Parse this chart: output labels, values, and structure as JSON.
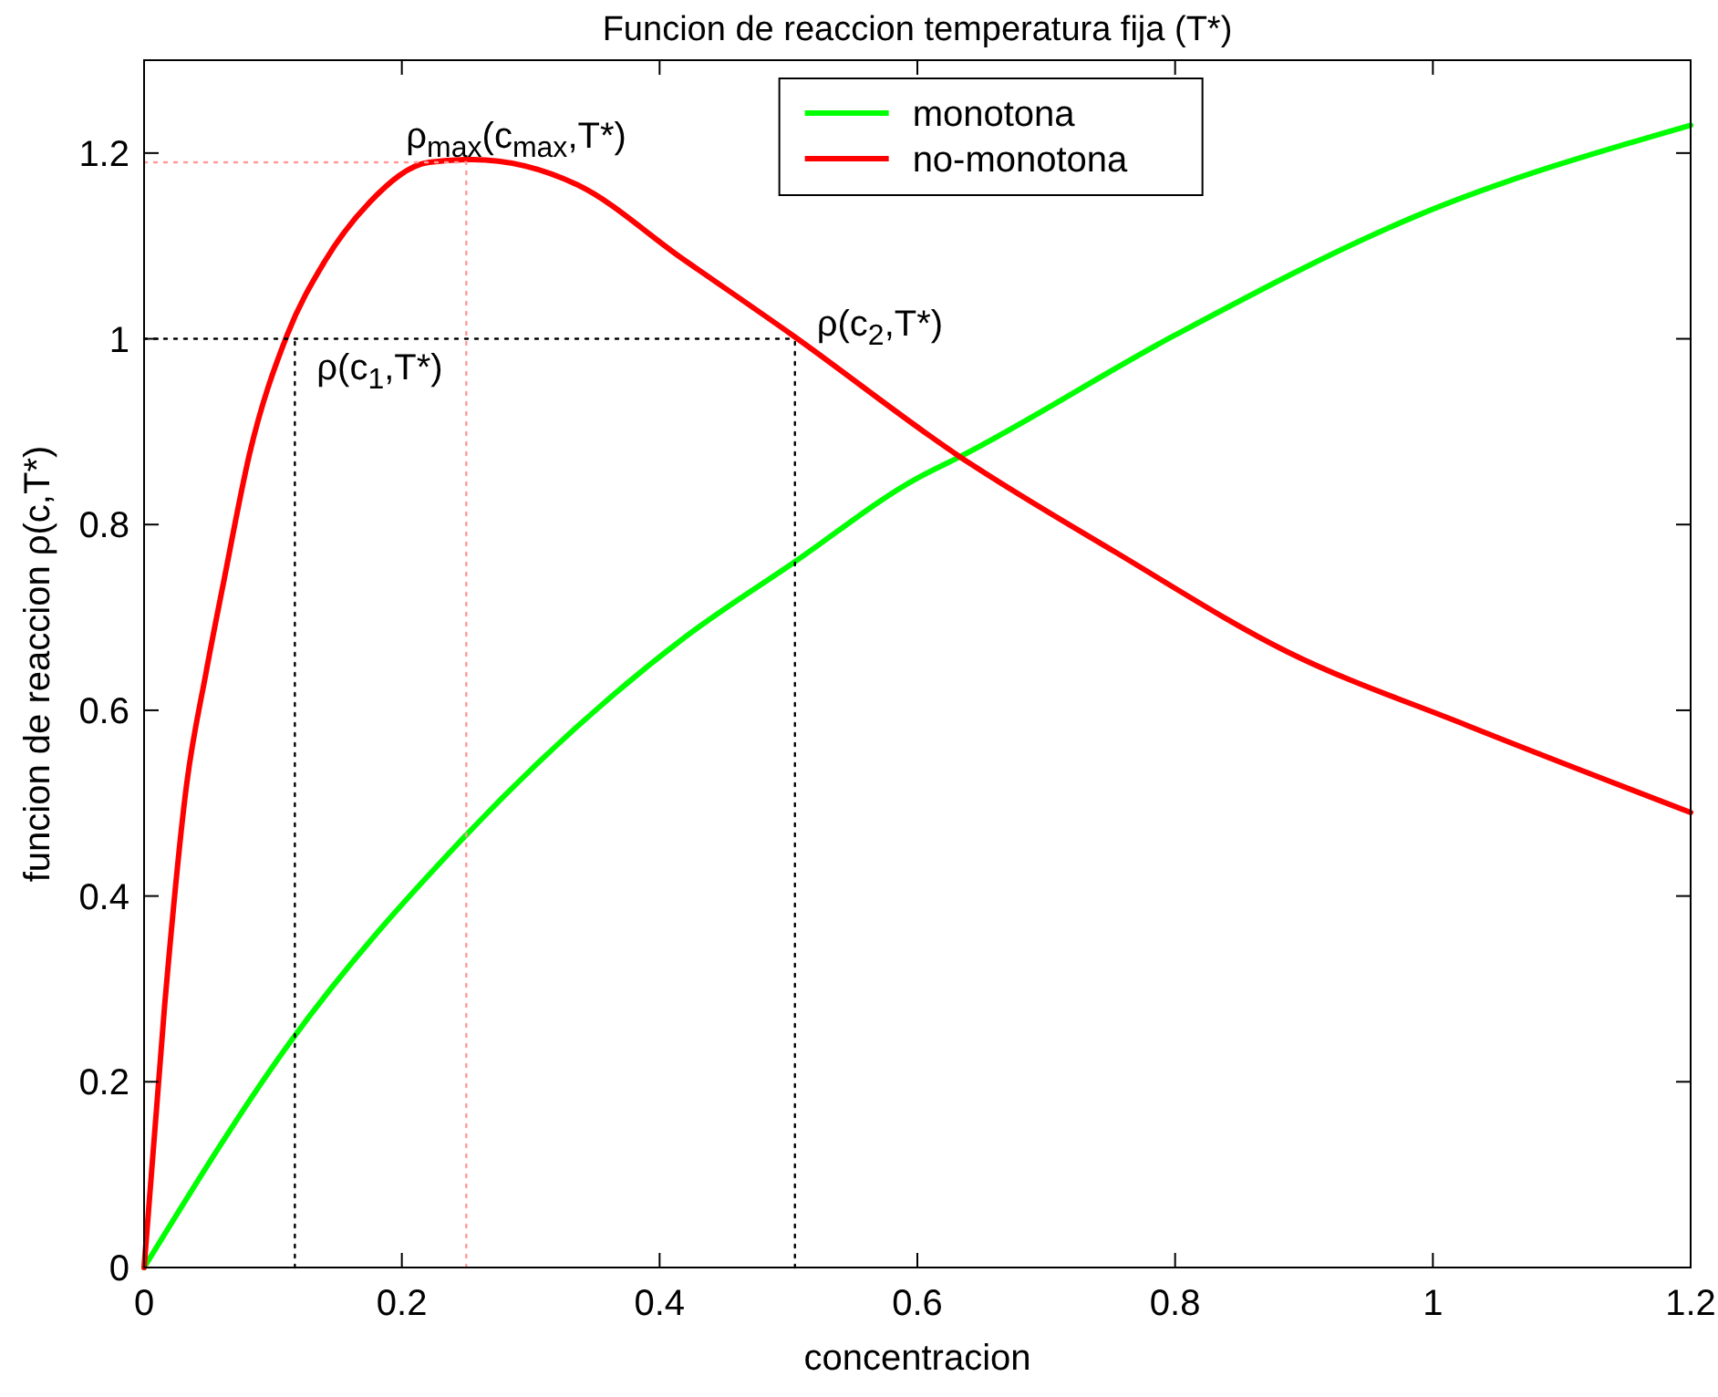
{
  "chart_data": {
    "type": "line",
    "title": "Funcion de reaccion  temperatura fija (T*)",
    "xlabel": "concentracion",
    "ylabel": "funcion de reaccion  ρ(c,T*)",
    "xlim": [
      0,
      1.2
    ],
    "ylim": [
      0,
      1.3
    ],
    "xticks": [
      0,
      0.2,
      0.4,
      0.6,
      0.8,
      1,
      1.2
    ],
    "yticks": [
      0,
      0.2,
      0.4,
      0.6,
      0.8,
      1,
      1.2
    ],
    "legend": "top",
    "series": [
      {
        "name": "monotona",
        "color": "#00ff00",
        "x": [
          0,
          0.114,
          0.244,
          0.42,
          0.503,
          0.6,
          0.633,
          0.8,
          0.985,
          1.2
        ],
        "values": [
          0,
          0.244,
          0.457,
          0.679,
          0.758,
          0.85,
          0.873,
          1.004,
          1.131,
          1.23
        ]
      },
      {
        "name": "no-monotona",
        "color": "#ff0000",
        "x": [
          0,
          0.016,
          0.033,
          0.048,
          0.062,
          0.082,
          0.111,
          0.14,
          0.175,
          0.221,
          0.255,
          0.336,
          0.417,
          0.503,
          0.633,
          0.754,
          0.887,
          1.026,
          1.2
        ],
        "values": [
          0,
          0.283,
          0.52,
          0.64,
          0.74,
          0.877,
          1.004,
          1.083,
          1.147,
          1.19,
          1.193,
          1.166,
          1.087,
          1.004,
          0.873,
          0.77,
          0.663,
          0.584,
          0.49
        ]
      },
      {
        "color": "#000000",
        "line_style": "dotted",
        "x": [
          0,
          0.505
        ],
        "values": [
          1,
          1
        ]
      },
      {
        "color": "#000000",
        "line_style": "dotted",
        "x": [
          0.117,
          0.117
        ],
        "values": [
          0,
          1
        ]
      },
      {
        "color": "#000000",
        "line_style": "dotted",
        "x": [
          0.505,
          0.505
        ],
        "values": [
          0,
          1
        ]
      },
      {
        "color": "#ff9999",
        "line_style": "dotted",
        "x": [
          0,
          0.25
        ],
        "values": [
          1.19,
          1.19
        ]
      },
      {
        "color": "#ff9999",
        "line_style": "dotted",
        "x": [
          0.25,
          0.25
        ],
        "values": [
          0,
          1.19
        ]
      }
    ],
    "annotations": [
      {
        "text": "ρ$_{max}$(c$_{max}$,T*)",
        "x": 0.25,
        "y": 1.19
      },
      {
        "text": "ρ(c$_{1}$,T*)",
        "x": 0.117,
        "y": 1
      },
      {
        "text": "ρ(c$_{2}$,T*)",
        "x": 0.505,
        "y": 1
      }
    ]
  }
}
